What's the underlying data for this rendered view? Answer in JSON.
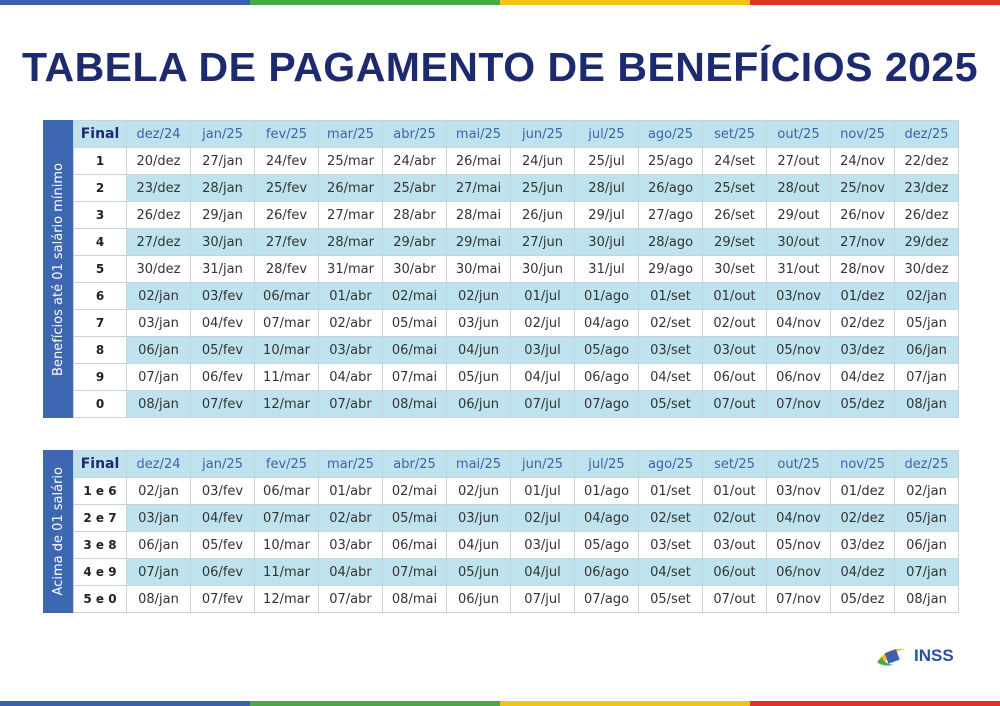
{
  "colors": {
    "stripe": [
      "#3d5fae",
      "#4aa84a",
      "#f3c21b",
      "#e0312b"
    ],
    "title": "#1e2a6e",
    "header_bg": "#bfe3ee",
    "side_bg": "#3d67b1"
  },
  "title": "TABELA DE PAGAMENTO DE BENEFÍCIOS 2025",
  "months": [
    "dez/24",
    "jan/25",
    "fev/25",
    "mar/25",
    "abr/25",
    "mai/25",
    "jun/25",
    "jul/25",
    "ago/25",
    "set/25",
    "out/25",
    "nov/25",
    "dez/25"
  ],
  "table1": {
    "side_label": "Benefícios até 01 salário mínimo",
    "final_label": "Final",
    "rows": [
      {
        "key": "1",
        "cells": [
          "20/dez",
          "27/jan",
          "24/fev",
          "25/mar",
          "24/abr",
          "26/mai",
          "24/jun",
          "25/jul",
          "25/ago",
          "24/set",
          "27/out",
          "24/nov",
          "22/dez"
        ]
      },
      {
        "key": "2",
        "cells": [
          "23/dez",
          "28/jan",
          "25/fev",
          "26/mar",
          "25/abr",
          "27/mai",
          "25/jun",
          "28/jul",
          "26/ago",
          "25/set",
          "28/out",
          "25/nov",
          "23/dez"
        ]
      },
      {
        "key": "3",
        "cells": [
          "26/dez",
          "29/jan",
          "26/fev",
          "27/mar",
          "28/abr",
          "28/mai",
          "26/jun",
          "29/jul",
          "27/ago",
          "26/set",
          "29/out",
          "26/nov",
          "26/dez"
        ]
      },
      {
        "key": "4",
        "cells": [
          "27/dez",
          "30/jan",
          "27/fev",
          "28/mar",
          "29/abr",
          "29/mai",
          "27/jun",
          "30/jul",
          "28/ago",
          "29/set",
          "30/out",
          "27/nov",
          "29/dez"
        ]
      },
      {
        "key": "5",
        "cells": [
          "30/dez",
          "31/jan",
          "28/fev",
          "31/mar",
          "30/abr",
          "30/mai",
          "30/jun",
          "31/jul",
          "29/ago",
          "30/set",
          "31/out",
          "28/nov",
          "30/dez"
        ]
      },
      {
        "key": "6",
        "cells": [
          "02/jan",
          "03/fev",
          "06/mar",
          "01/abr",
          "02/mai",
          "02/jun",
          "01/jul",
          "01/ago",
          "01/set",
          "01/out",
          "03/nov",
          "01/dez",
          "02/jan"
        ]
      },
      {
        "key": "7",
        "cells": [
          "03/jan",
          "04/fev",
          "07/mar",
          "02/abr",
          "05/mai",
          "03/jun",
          "02/jul",
          "04/ago",
          "02/set",
          "02/out",
          "04/nov",
          "02/dez",
          "05/jan"
        ]
      },
      {
        "key": "8",
        "cells": [
          "06/jan",
          "05/fev",
          "10/mar",
          "03/abr",
          "06/mai",
          "04/jun",
          "03/jul",
          "05/ago",
          "03/set",
          "03/out",
          "05/nov",
          "03/dez",
          "06/jan"
        ]
      },
      {
        "key": "9",
        "cells": [
          "07/jan",
          "06/fev",
          "11/mar",
          "04/abr",
          "07/mai",
          "05/jun",
          "04/jul",
          "06/ago",
          "04/set",
          "06/out",
          "06/nov",
          "04/dez",
          "07/jan"
        ]
      },
      {
        "key": "0",
        "cells": [
          "08/jan",
          "07/fev",
          "12/mar",
          "07/abr",
          "08/mai",
          "06/jun",
          "07/jul",
          "07/ago",
          "05/set",
          "07/out",
          "07/nov",
          "05/dez",
          "08/jan"
        ]
      }
    ]
  },
  "table2": {
    "side_label": "Acima de 01 salário",
    "final_label": "Final",
    "rows": [
      {
        "key": "1 e 6",
        "cells": [
          "02/jan",
          "03/fev",
          "06/mar",
          "01/abr",
          "02/mai",
          "02/jun",
          "01/jul",
          "01/ago",
          "01/set",
          "01/out",
          "03/nov",
          "01/dez",
          "02/jan"
        ]
      },
      {
        "key": "2 e 7",
        "cells": [
          "03/jan",
          "04/fev",
          "07/mar",
          "02/abr",
          "05/mai",
          "03/jun",
          "02/jul",
          "04/ago",
          "02/set",
          "02/out",
          "04/nov",
          "02/dez",
          "05/jan"
        ]
      },
      {
        "key": "3 e 8",
        "cells": [
          "06/jan",
          "05/fev",
          "10/mar",
          "03/abr",
          "06/mai",
          "04/jun",
          "03/jul",
          "05/ago",
          "03/set",
          "03/out",
          "05/nov",
          "03/dez",
          "06/jan"
        ]
      },
      {
        "key": "4 e 9",
        "cells": [
          "07/jan",
          "06/fev",
          "11/mar",
          "04/abr",
          "07/mai",
          "05/jun",
          "04/jul",
          "06/ago",
          "04/set",
          "06/out",
          "06/nov",
          "04/dez",
          "07/jan"
        ]
      },
      {
        "key": "5 e 0",
        "cells": [
          "08/jan",
          "07/fev",
          "12/mar",
          "07/abr",
          "08/mai",
          "06/jun",
          "07/jul",
          "07/ago",
          "05/set",
          "07/out",
          "07/nov",
          "05/dez",
          "08/jan"
        ]
      }
    ]
  },
  "logo": {
    "text": "INSS",
    "icon": "inss-logo-icon"
  }
}
